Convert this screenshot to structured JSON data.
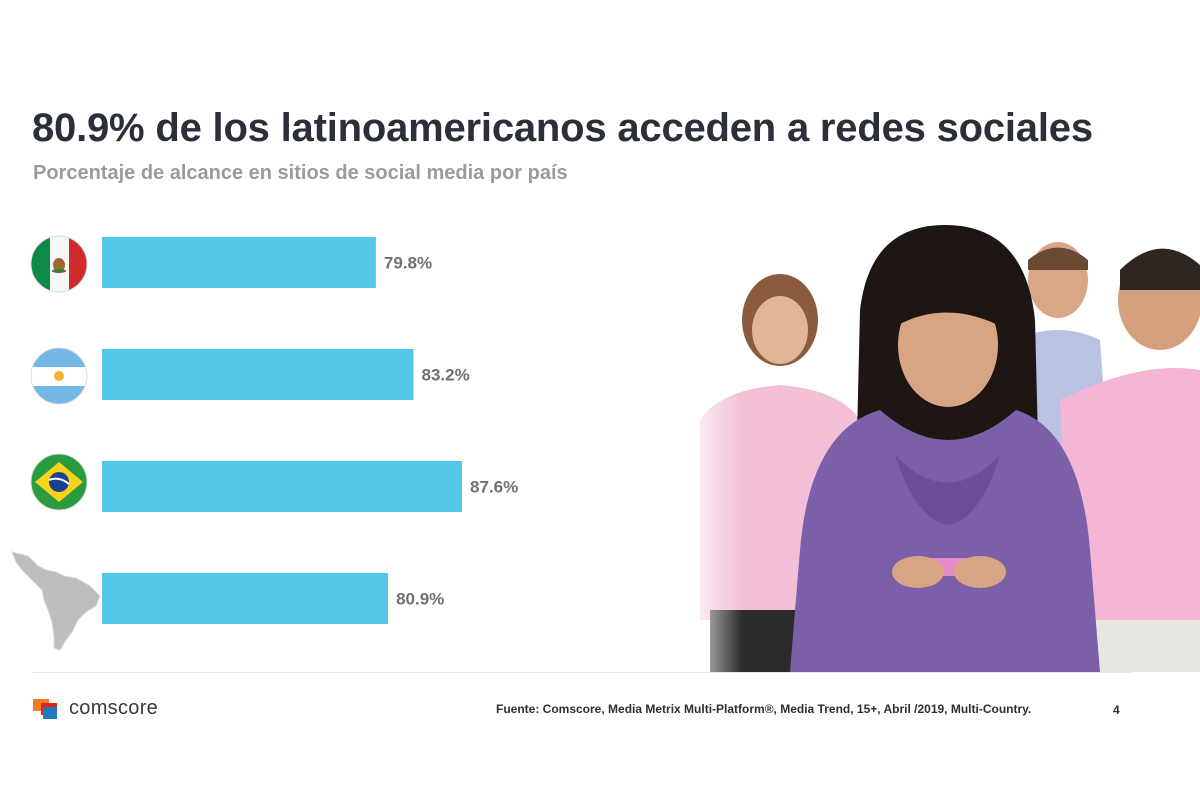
{
  "header": {
    "title": "80.9% de los latinoamericanos acceden a redes sociales",
    "subtitle": "Porcentaje de alcance en sitios de social media por país"
  },
  "chart_data": {
    "type": "bar",
    "orientation": "horizontal",
    "title": "80.9% de los latinoamericanos acceden a redes sociales",
    "subtitle": "Porcentaje de alcance en sitios de social media por país",
    "categories": [
      "mexico-flag",
      "argentina-flag",
      "brazil-flag",
      "latin-america-map"
    ],
    "values": [
      79.8,
      83.2,
      87.6,
      80.9
    ],
    "data_labels": [
      "79.8%",
      "83.2%",
      "87.6%",
      "80.9%"
    ],
    "xlim": [
      55,
      100
    ],
    "grid": false,
    "legend": "none",
    "bar_color": "#55c7e8",
    "label_color": "#707070"
  },
  "photo": {
    "icon": "people-using-smartphones-photo"
  },
  "footer": {
    "logo_text": "comscore",
    "source": "Fuente: Comscore, Media Metrix Multi-Platform®, Media Trend, 15+, Abril /2019, Multi-Country.",
    "page_number": "4"
  },
  "colors": {
    "title": "#2b2f3a",
    "subtitle": "#9b9b9b",
    "bar": "#55c7e8",
    "logo_orange": "#f47b20",
    "logo_red": "#e2231a",
    "logo_blue": "#1f7bc1"
  }
}
